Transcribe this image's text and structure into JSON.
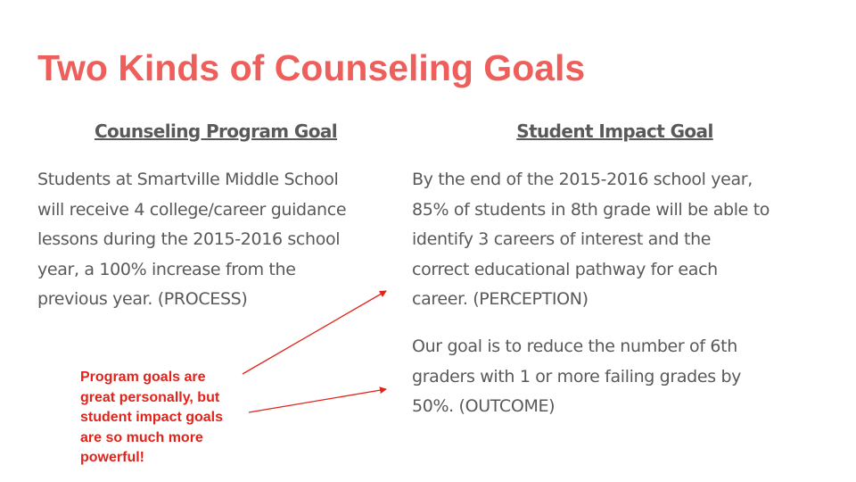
{
  "slide": {
    "title": "Two Kinds of Counseling Goals",
    "left": {
      "heading": "Counseling Program Goal",
      "body": "Students at Smartville Middle School\nwill receive 4 college/career guidance\nlessons during the 2015-2016 school\nyear, a 100% increase from the\nprevious year. (PROCESS)"
    },
    "right": {
      "heading": "Student Impact Goal",
      "body_1": "By the end of the 2015-2016 school year,\n85% of students in 8th grade will be able to\nidentify 3 careers of interest and the\ncorrect educational pathway for each\ncareer. (PERCEPTION)",
      "body_2": "Our goal is to reduce the number of 6th\ngraders with 1 or more failing grades by\n50%. (OUTCOME)"
    },
    "note": "Program goals are\ngreat personally, but\nstudent impact goals\nare so much more\npowerful!"
  },
  "colors": {
    "title": "#ee5f5b",
    "body": "#595959",
    "note": "#e0241b",
    "arrow": "#e0241b"
  }
}
